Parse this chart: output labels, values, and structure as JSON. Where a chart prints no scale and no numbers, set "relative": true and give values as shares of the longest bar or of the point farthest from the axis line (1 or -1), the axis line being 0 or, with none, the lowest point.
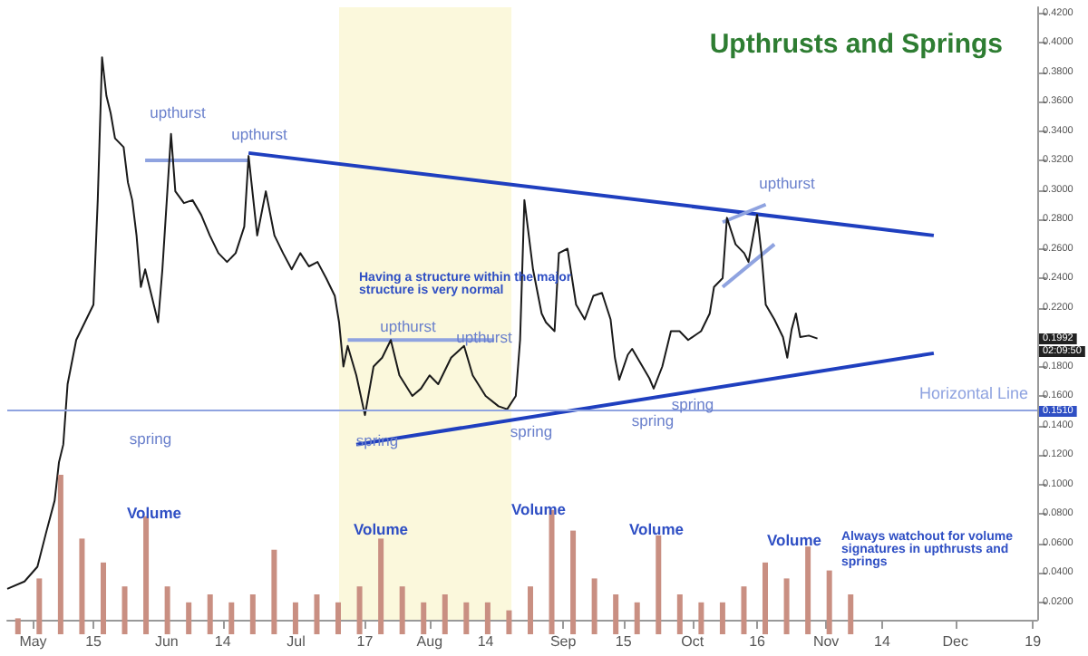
{
  "chart_data": [
    {
      "type": "line",
      "title": "Upthrusts and Springs",
      "xlim": [
        "--04-25",
        "--12-20"
      ],
      "xticks": [
        {
          "value": "--05-01",
          "label": "May"
        },
        {
          "value": "--05-15",
          "label": "15"
        },
        {
          "value": "--06-01",
          "label": "Jun"
        },
        {
          "value": "--06-14",
          "label": "14"
        },
        {
          "value": "--07-01",
          "label": "Jul"
        },
        {
          "value": "--07-17",
          "label": "17"
        },
        {
          "value": "--08-01",
          "label": "Aug"
        },
        {
          "value": "--08-14",
          "label": "14"
        },
        {
          "value": "--09-01",
          "label": "Sep"
        },
        {
          "value": "--09-15",
          "label": "15"
        },
        {
          "value": "--10-01",
          "label": "Oct"
        },
        {
          "value": "--10-16",
          "label": "16"
        },
        {
          "value": "--11-01",
          "label": "Nov"
        },
        {
          "value": "--11-14",
          "label": "14"
        },
        {
          "value": "--12-01",
          "label": "Dec"
        },
        {
          "value": "--12-19",
          "label": "19"
        }
      ],
      "ylim": [
        0.008,
        0.424
      ],
      "yticks": [
        {
          "value": 0.02,
          "label": "0.0200"
        },
        {
          "value": 0.04,
          "label": "0.0400"
        },
        {
          "value": 0.06,
          "label": "0.0600"
        },
        {
          "value": 0.08,
          "label": "0.0800"
        },
        {
          "value": 0.1,
          "label": "0.1000"
        },
        {
          "value": 0.12,
          "label": "0.1200"
        },
        {
          "value": 0.14,
          "label": "0.1400"
        },
        {
          "value": 0.16,
          "label": "0.1600"
        },
        {
          "value": 0.18,
          "label": "0.1800"
        },
        {
          "value": 0.2,
          "label": null
        },
        {
          "value": 0.22,
          "label": "0.2200"
        },
        {
          "value": 0.24,
          "label": "0.2400"
        },
        {
          "value": 0.26,
          "label": "0.2600"
        },
        {
          "value": 0.28,
          "label": "0.2800"
        },
        {
          "value": 0.3,
          "label": "0.3000"
        },
        {
          "value": 0.32,
          "label": "0.3200"
        },
        {
          "value": 0.34,
          "label": "0.3400"
        },
        {
          "value": 0.36,
          "label": "0.3600"
        },
        {
          "value": 0.38,
          "label": "0.3800"
        },
        {
          "value": 0.4,
          "label": "0.4000"
        },
        {
          "value": 0.42,
          "label": "0.4200"
        }
      ],
      "series": [
        {
          "color": "#1a1a1a",
          "x": [
            "--04-25",
            "--04-29",
            "--05-02",
            "--05-04",
            "--05-06",
            "--05-07",
            "--05-08",
            "--05-09",
            "--05-11",
            "--05-13",
            "--05-15",
            "--05-16",
            "--05-17",
            "--05-18",
            "--05-19",
            "--05-20",
            "--05-22",
            "--05-23",
            "--05-24",
            "--05-25",
            "--05-26",
            "--05-27",
            "--05-29",
            "--05-30",
            "--05-31",
            "--06-02",
            "--06-03",
            "--06-05",
            "--06-07",
            "--06-09",
            "--06-11",
            "--06-13",
            "--06-15",
            "--06-17",
            "--06-19",
            "--06-20",
            "--06-22",
            "--06-24",
            "--06-26",
            "--06-28",
            "--06-30",
            "--07-02",
            "--07-04",
            "--07-06",
            "--07-08",
            "--07-10",
            "--07-11",
            "--07-12",
            "--07-13",
            "--07-15",
            "--07-17",
            "--07-19",
            "--07-21",
            "--07-23",
            "--07-25",
            "--07-28",
            "--07-30",
            "--08-01",
            "--08-03",
            "--08-06",
            "--08-09",
            "--08-11",
            "--08-14",
            "--08-17",
            "--08-19",
            "--08-21",
            "--08-22",
            "--08-23",
            "--08-25",
            "--08-27",
            "--08-28",
            "--08-30",
            "--08-31",
            "--09-02",
            "--09-04",
            "--09-06",
            "--09-08",
            "--09-10",
            "--09-12",
            "--09-13",
            "--09-14",
            "--09-16",
            "--09-17",
            "--09-19",
            "--09-21",
            "--09-22",
            "--09-24",
            "--09-26",
            "--09-28",
            "--09-30",
            "--10-02",
            "--10-03",
            "--10-05",
            "--10-06",
            "--10-08",
            "--10-09",
            "--10-11",
            "--10-13",
            "--10-14",
            "--10-16",
            "--10-17",
            "--10-18",
            "--10-20",
            "--10-22",
            "--10-23",
            "--10-24",
            "--10-25",
            "--10-26",
            "--10-28",
            "--10-30"
          ],
          "values": [
            0.029,
            0.034,
            0.044,
            0.067,
            0.089,
            0.115,
            0.127,
            0.168,
            0.198,
            0.21,
            0.222,
            0.293,
            0.39,
            0.364,
            0.352,
            0.335,
            0.329,
            0.305,
            0.293,
            0.269,
            0.234,
            0.246,
            0.222,
            0.21,
            0.246,
            0.338,
            0.299,
            0.291,
            0.293,
            0.283,
            0.269,
            0.257,
            0.251,
            0.257,
            0.275,
            0.323,
            0.269,
            0.299,
            0.269,
            0.257,
            0.246,
            0.257,
            0.248,
            0.251,
            0.24,
            0.228,
            0.21,
            0.18,
            0.194,
            0.174,
            0.147,
            0.18,
            0.186,
            0.198,
            0.174,
            0.16,
            0.165,
            0.174,
            0.168,
            0.186,
            0.194,
            0.174,
            0.16,
            0.153,
            0.151,
            0.16,
            0.198,
            0.293,
            0.246,
            0.216,
            0.21,
            0.204,
            0.257,
            0.26,
            0.222,
            0.212,
            0.228,
            0.23,
            0.212,
            0.186,
            0.171,
            0.188,
            0.192,
            0.182,
            0.172,
            0.165,
            0.18,
            0.204,
            0.204,
            0.198,
            0.202,
            0.204,
            0.216,
            0.234,
            0.24,
            0.281,
            0.263,
            0.257,
            0.251,
            0.283,
            0.257,
            0.222,
            0.212,
            0.2,
            0.186,
            0.205,
            0.216,
            0.2,
            0.201,
            0.199
          ]
        },
        {
          "color": "#1f3fbf",
          "x": [
            "--06-20",
            "--11-26"
          ],
          "values": [
            0.325,
            0.269
          ]
        },
        {
          "color": "#1f3fbf",
          "x": [
            "--07-15",
            "--11-26"
          ],
          "values": [
            0.127,
            0.189
          ]
        },
        {
          "color": "#8fa3e0",
          "x": [
            "--05-27",
            "--06-20"
          ],
          "values": [
            0.32,
            0.32
          ]
        },
        {
          "color": "#8fa3e0",
          "x": [
            "--07-13",
            "--08-16"
          ],
          "values": [
            0.198,
            0.198
          ]
        },
        {
          "color": "#8fa3e0",
          "x": [
            "--10-08",
            "--10-18"
          ],
          "values": [
            0.278,
            0.29
          ]
        },
        {
          "color": "#8fa3e0",
          "x": [
            "--10-08",
            "--10-20"
          ],
          "values": [
            0.234,
            0.263
          ]
        }
      ],
      "ref_lines": [
        {
          "axis": "y",
          "value": 0.151,
          "label": "Horizontal Line",
          "color": "#8fa3e0"
        }
      ],
      "bands": [
        {
          "axis": "x",
          "from": "--07-11",
          "to": "--08-20",
          "color": "#fbf8dc"
        }
      ],
      "annotations": [
        "upthurst",
        "upthurst",
        "upthurst",
        "upthurst",
        "upthurst",
        "spring",
        "spring",
        "spring",
        "spring",
        "spring",
        "Having a structure within the major structure is very normal",
        "0.1992",
        "02:09:50",
        "0.1510"
      ]
    },
    {
      "type": "bar",
      "relative": true,
      "tick_labels": false,
      "color": "#c98f82",
      "categories": [
        null,
        null,
        null,
        null,
        null,
        null,
        null,
        null,
        null,
        null,
        null,
        null,
        null,
        null,
        null,
        null,
        null,
        null,
        null,
        null,
        null,
        null,
        null,
        null,
        null,
        null,
        null,
        null,
        null,
        null,
        null,
        null,
        null,
        null,
        null,
        null,
        null,
        null,
        null,
        null
      ],
      "values": [
        0.1,
        0.35,
        1,
        0.6,
        0.45,
        0.3,
        0.74,
        0.3,
        0.2,
        0.25,
        0.2,
        0.25,
        0.53,
        0.2,
        0.25,
        0.2,
        0.3,
        0.6,
        0.3,
        0.2,
        0.25,
        0.2,
        0.2,
        0.15,
        0.3,
        0.78,
        0.65,
        0.35,
        0.25,
        0.2,
        0.62,
        0.25,
        0.2,
        0.2,
        0.3,
        0.45,
        0.35,
        0.55,
        0.4,
        0.25
      ],
      "annotations": [
        "Volume",
        "Volume",
        "Volume",
        "Volume",
        "Volume",
        "Always watchout for volume signatures in upthrusts and springs"
      ]
    }
  ]
}
